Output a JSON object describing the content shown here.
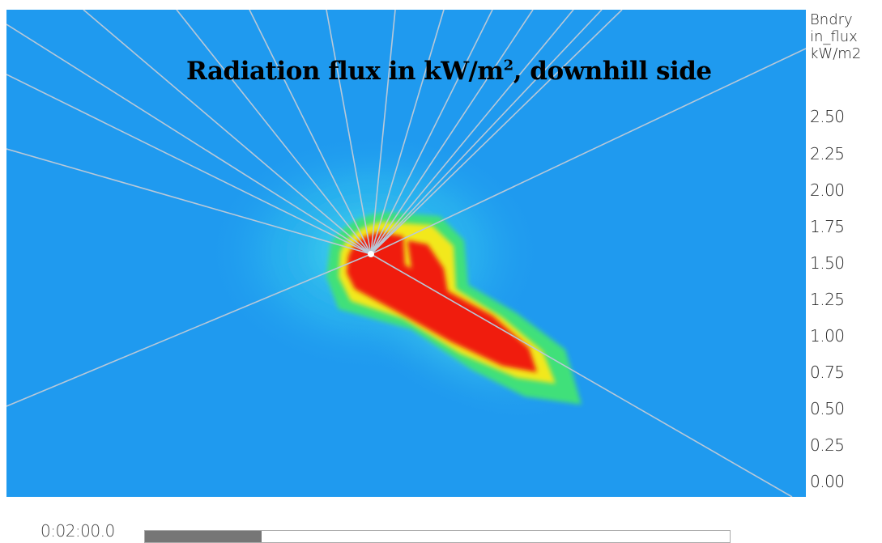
{
  "view": {
    "title_main": "Radiation flux in kW/m",
    "title_sup": "2",
    "title_tail": ", downhill side"
  },
  "legend": {
    "heading": [
      "Bndry",
      "in_flux",
      "kW/m2"
    ],
    "ticks": [
      "2.50",
      "2.25",
      "2.00",
      "1.75",
      "1.50",
      "1.25",
      "1.00",
      "0.75",
      "0.50",
      "0.25",
      "0.00"
    ]
  },
  "colors": {
    "background": "#1f9aef",
    "halo": "#3ad4e6",
    "green": "#3fe07a",
    "yellow": "#f2e81c",
    "red": "#f01a0a",
    "rays": "#b8c8d8"
  },
  "timeline": {
    "time": "0:02:00.0",
    "progress": 0.2
  }
}
